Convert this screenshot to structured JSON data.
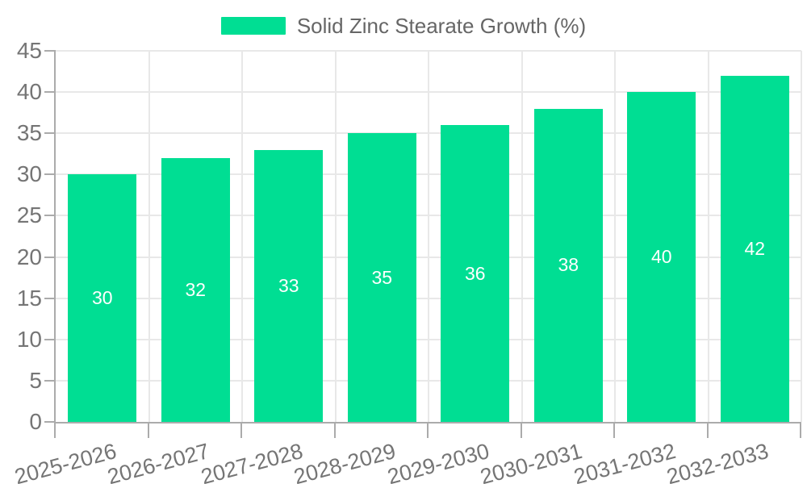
{
  "chart_data": {
    "type": "bar",
    "legend": "Solid Zinc Stearate Growth (%)",
    "legend_position": "top-center",
    "categories": [
      "2025-2026",
      "2026-2027",
      "2027-2028",
      "2028-2029",
      "2029-2030",
      "2030-2031",
      "2031-2032",
      "2032-2033"
    ],
    "values": [
      30,
      32,
      33,
      35,
      36,
      38,
      40,
      42
    ],
    "xlabel": "",
    "ylabel": "",
    "ylim": [
      0,
      45
    ],
    "ytick_step": 5,
    "yticks": [
      0,
      5,
      10,
      15,
      20,
      25,
      30,
      35,
      40,
      45
    ],
    "grid": true,
    "value_labels_position": "center-inside",
    "x_label_rotation_deg": -15
  },
  "colors": {
    "bar": "#00DE93",
    "bar_value_label": "#FFFFFF",
    "grid": "#E8E8E8",
    "axis": "#ABABAB",
    "tick_label": "#757575",
    "legend_text": "#666666",
    "background": "#FFFFFF"
  }
}
